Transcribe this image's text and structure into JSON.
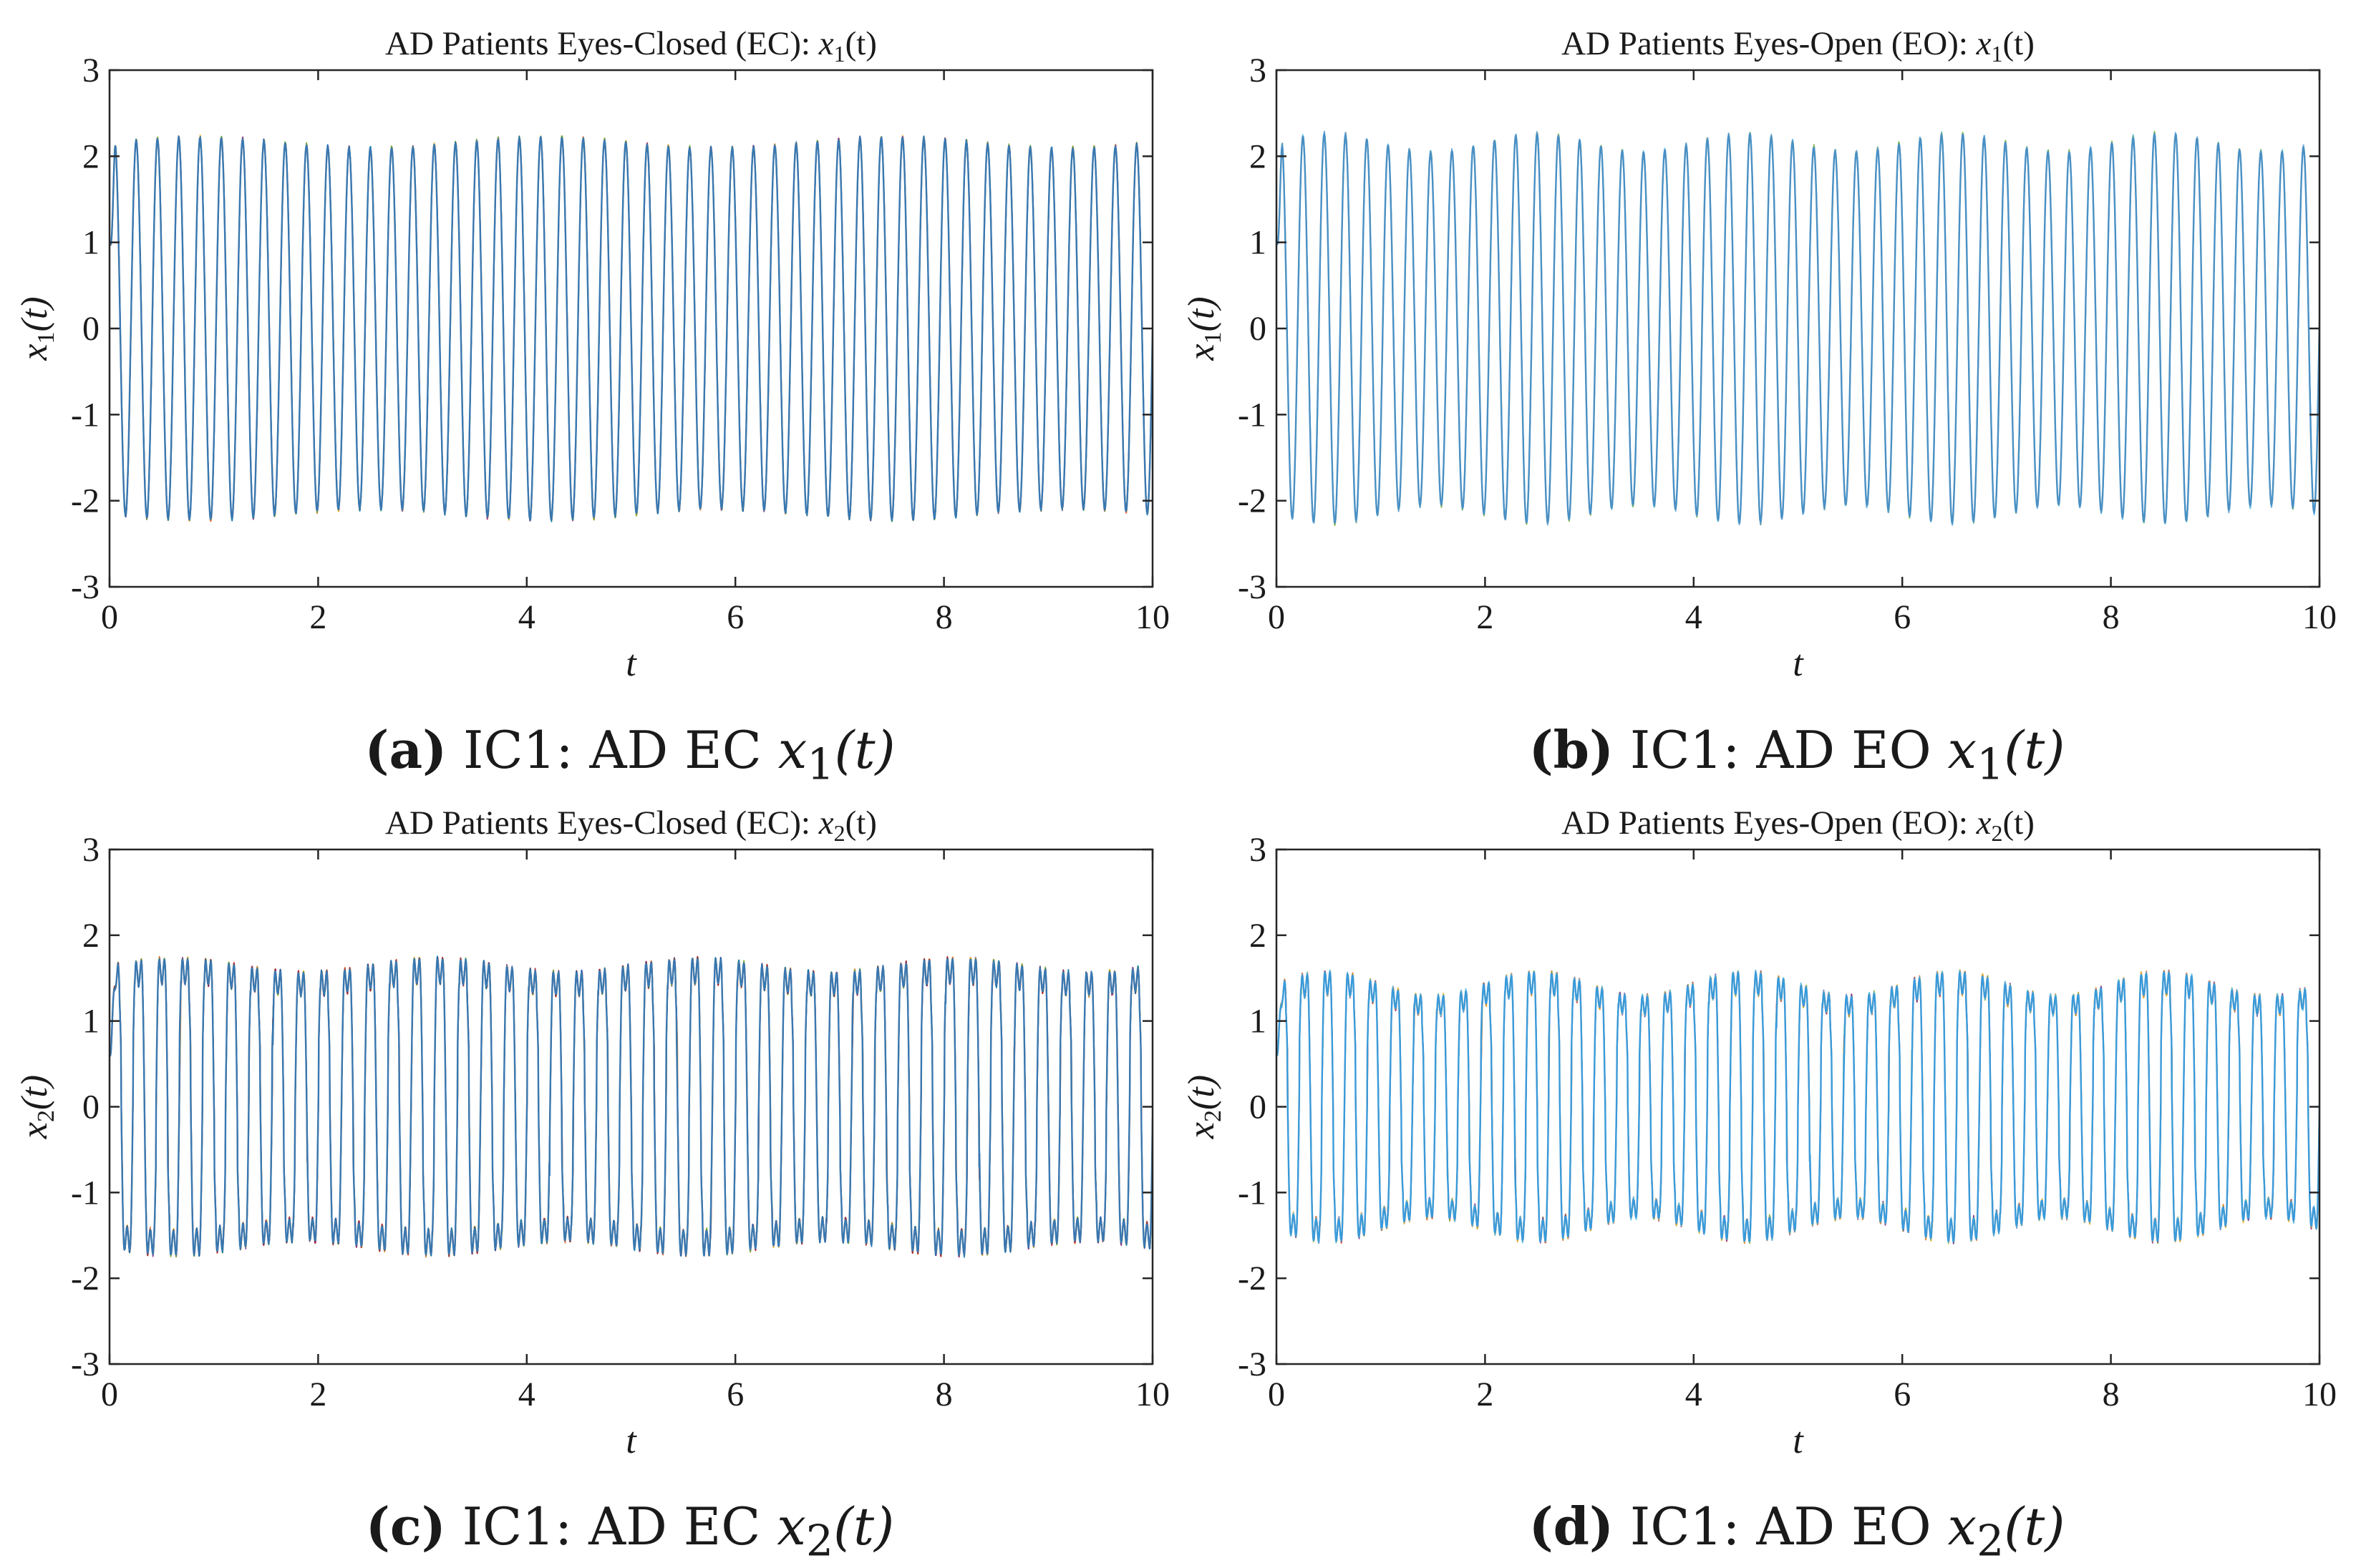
{
  "chart_data": [
    {
      "type": "line",
      "title": "AD Patients Eyes-Closed (EC): x_1(t)",
      "title_text": "AD Patients Eyes-Closed (EC): ",
      "title_var": "x",
      "title_sub": "1",
      "title_arg": "(t)",
      "xlabel": "t",
      "ylabel": "x_1(t)",
      "ylabel_var": "x",
      "ylabel_sub": "1",
      "ylabel_arg": "(t)",
      "xlim": [
        0,
        10
      ],
      "ylim": [
        -3,
        3
      ],
      "xticks": [
        0,
        2,
        4,
        6,
        8,
        10
      ],
      "yticks": [
        3,
        2,
        1,
        0,
        -1,
        -2,
        -3
      ],
      "xtick_labels": [
        "0",
        "2",
        "4",
        "6",
        "8",
        "10"
      ],
      "ytick_labels": [
        "3",
        "2",
        "1",
        "0",
        "-1",
        "-2",
        "-3"
      ],
      "grid": false,
      "signal": {
        "cycles": 49,
        "peak": 2.15,
        "trough": -2.15,
        "amplitude_modulation": 0.03,
        "modulation_cycles": 3,
        "shoulder": 0,
        "start_value": 1.0
      },
      "series": [
        {
          "color": "#d95319"
        },
        {
          "color": "#edb120"
        },
        {
          "color": "#7e2f8e"
        },
        {
          "color": "#77ac30"
        },
        {
          "color": "#0072bd"
        },
        {
          "color": "#3a78b0"
        }
      ],
      "caption_letter": "(a)",
      "caption_text": " IC1: AD EC ",
      "caption_var": "x",
      "caption_sub": "1",
      "caption_arg": "(t)"
    },
    {
      "type": "line",
      "title": "AD Patients Eyes-Open (EO): x_1(t)",
      "title_text": "AD Patients Eyes-Open (EO): ",
      "title_var": "x",
      "title_sub": "1",
      "title_arg": "(t)",
      "xlabel": "t",
      "ylabel": "x_1(t)",
      "ylabel_var": "x",
      "ylabel_sub": "1",
      "ylabel_arg": "(t)",
      "xlim": [
        0,
        10
      ],
      "ylim": [
        -3,
        3
      ],
      "xticks": [
        0,
        2,
        4,
        6,
        8,
        10
      ],
      "yticks": [
        3,
        2,
        1,
        0,
        -1,
        -2,
        -3
      ],
      "xtick_labels": [
        "0",
        "2",
        "4",
        "6",
        "8",
        "10"
      ],
      "ytick_labels": [
        "3",
        "2",
        "1",
        "0",
        "-1",
        "-2",
        "-3"
      ],
      "grid": false,
      "signal": {
        "cycles": 49,
        "peak": 2.15,
        "trough": -2.15,
        "amplitude_modulation": 0.05,
        "modulation_cycles": 5,
        "shoulder": 0,
        "start_value": 1.0
      },
      "series": [
        {
          "color": "#4dbeee"
        },
        {
          "color": "#77ac30"
        },
        {
          "color": "#5b9bd5"
        },
        {
          "color": "#4a90c4"
        }
      ],
      "caption_letter": "(b)",
      "caption_text": " IC1: AD EO ",
      "caption_var": "x",
      "caption_sub": "1",
      "caption_arg": "(t)"
    },
    {
      "type": "line",
      "title": "AD Patients Eyes-Closed (EC): x_2(t)",
      "title_text": "AD Patients Eyes-Closed (EC): ",
      "title_var": "x",
      "title_sub": "2",
      "title_arg": "(t)",
      "xlabel": "t",
      "ylabel": "x_2(t)",
      "ylabel_var": "x",
      "ylabel_sub": "2",
      "ylabel_arg": "(t)",
      "xlim": [
        0,
        10
      ],
      "ylim": [
        -3,
        3
      ],
      "xticks": [
        0,
        2,
        4,
        6,
        8,
        10
      ],
      "yticks": [
        3,
        2,
        1,
        0,
        -1,
        -2,
        -3
      ],
      "xtick_labels": [
        "0",
        "2",
        "4",
        "6",
        "8",
        "10"
      ],
      "ytick_labels": [
        "3",
        "2",
        "1",
        "0",
        "-1",
        "-2",
        "-3"
      ],
      "grid": false,
      "signal": {
        "cycles": 45,
        "peak": 2.3,
        "trough": -2.3,
        "amplitude_modulation": 0.05,
        "modulation_cycles": 4,
        "shoulder": 1.35,
        "start_value": 0.6
      },
      "series": [
        {
          "color": "#d95319"
        },
        {
          "color": "#edb120"
        },
        {
          "color": "#7e2f8e"
        },
        {
          "color": "#77ac30"
        },
        {
          "color": "#a2142f"
        },
        {
          "color": "#0072bd"
        },
        {
          "color": "#3a78b0"
        }
      ],
      "caption_letter": "(c)",
      "caption_text": " IC1: AD EC ",
      "caption_var": "x",
      "caption_sub": "2",
      "caption_arg": "(t)"
    },
    {
      "type": "line",
      "title": "AD Patients Eyes-Open (EO): x_2(t)",
      "title_text": "AD Patients Eyes-Open (EO): ",
      "title_var": "x",
      "title_sub": "2",
      "title_arg": "(t)",
      "xlabel": "t",
      "ylabel": "x_2(t)",
      "ylabel_var": "x",
      "ylabel_sub": "2",
      "ylabel_arg": "(t)",
      "xlim": [
        0,
        10
      ],
      "ylim": [
        -3,
        3
      ],
      "xticks": [
        0,
        2,
        4,
        6,
        8,
        10
      ],
      "yticks": [
        3,
        2,
        1,
        0,
        -1,
        -2,
        -3
      ],
      "xtick_labels": [
        "0",
        "2",
        "4",
        "6",
        "8",
        "10"
      ],
      "ytick_labels": [
        "3",
        "2",
        "1",
        "0",
        "-1",
        "-2",
        "-3"
      ],
      "grid": false,
      "signal": {
        "cycles": 46,
        "peak": 2.0,
        "trough": -2.0,
        "amplitude_modulation": 0.1,
        "modulation_cycles": 5,
        "shoulder": 1.2,
        "start_value": 0.6
      },
      "series": [
        {
          "color": "#77ac30"
        },
        {
          "color": "#d95319"
        },
        {
          "color": "#7e2f8e"
        },
        {
          "color": "#edb120"
        },
        {
          "color": "#4dbeee"
        },
        {
          "color": "#3a9ad9"
        }
      ],
      "caption_letter": "(d)",
      "caption_text": " IC1: AD EO ",
      "caption_var": "x",
      "caption_sub": "2",
      "caption_arg": "(t)"
    }
  ]
}
